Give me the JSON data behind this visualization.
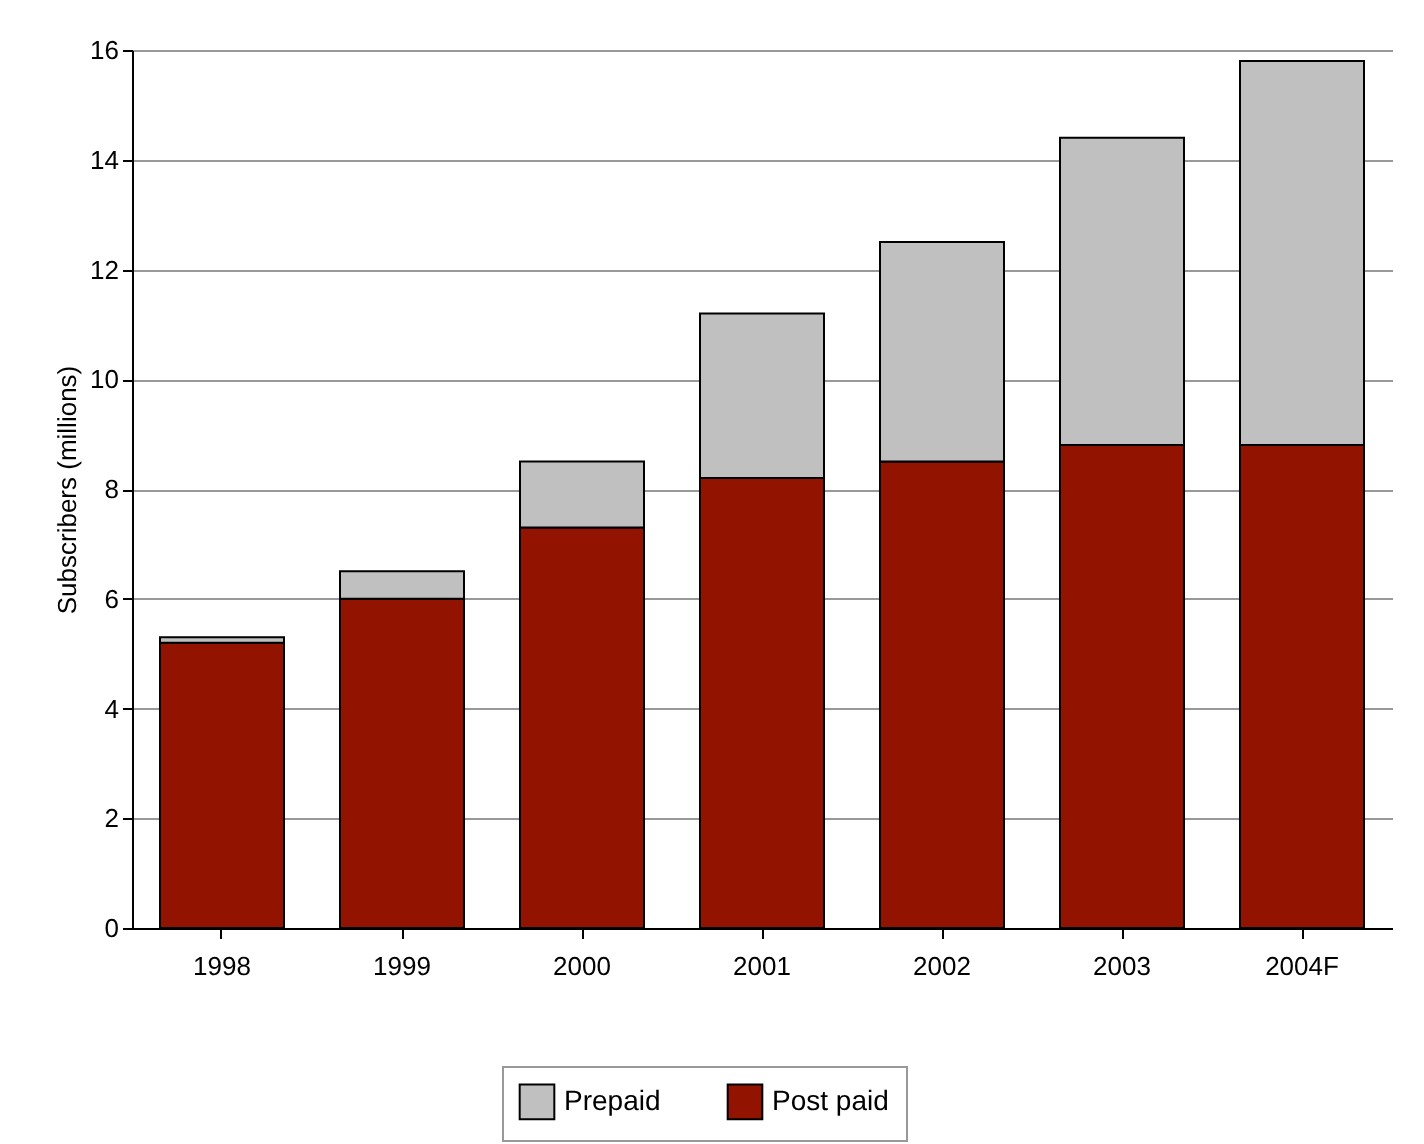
{
  "chart_data": {
    "type": "bar",
    "ylabel": "Subscribers (millions)",
    "categories": [
      "1998",
      "1999",
      "2000",
      "2001",
      "2002",
      "2003",
      "2004F"
    ],
    "stacked": true,
    "series": [
      {
        "name": "Post paid",
        "color": "#921400",
        "values": [
          5.2,
          6.0,
          7.3,
          8.2,
          8.5,
          8.8,
          8.8
        ]
      },
      {
        "name": "Prepaid",
        "color": "#c0c0c0",
        "values": [
          0.1,
          0.5,
          1.2,
          3.0,
          4.0,
          5.6,
          7.0
        ]
      }
    ],
    "ylim": [
      0,
      16
    ],
    "yticks": [
      0,
      2,
      4,
      6,
      8,
      10,
      12,
      14,
      16
    ],
    "grid": "y",
    "legend": "bottom"
  }
}
